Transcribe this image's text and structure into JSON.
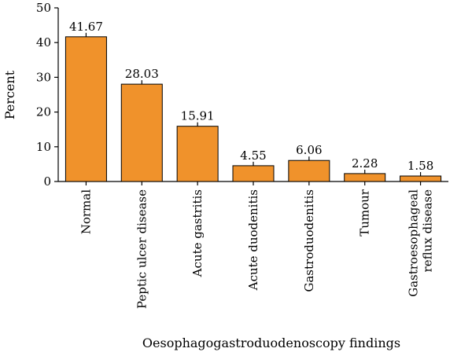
{
  "colors": {
    "bar": "#F0922B",
    "bar_edge": "#000000",
    "axis": "#000000"
  },
  "chart_data": {
    "type": "bar",
    "xlabel": "Oesophagogastroduodenoscopy findings",
    "ylabel": "Percent",
    "ylim": [
      0,
      50
    ],
    "yticks": [
      0,
      10,
      20,
      30,
      40,
      50
    ],
    "grid": false,
    "categories": [
      [
        "Normal"
      ],
      [
        "Peptic ulcer disease"
      ],
      [
        "Acute gastritis"
      ],
      [
        "Acute duodenitis"
      ],
      [
        "Gastroduodenitis"
      ],
      [
        "Tumour"
      ],
      [
        "Gastroesophageal",
        "reflux disease"
      ]
    ],
    "values": [
      41.67,
      28.03,
      15.91,
      4.55,
      6.06,
      2.28,
      1.58
    ],
    "value_labels": [
      "41.67",
      "28.03",
      "15.91",
      "4.55",
      "6.06",
      "2.28",
      "1.58"
    ]
  }
}
